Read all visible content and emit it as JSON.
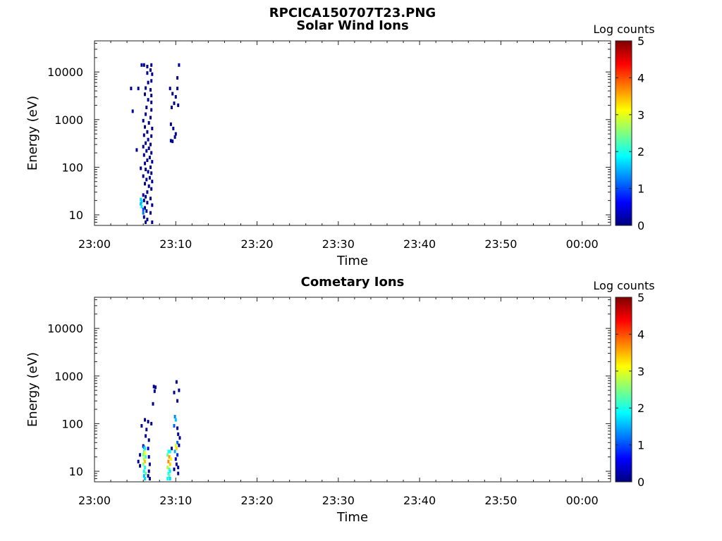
{
  "figure": {
    "title": "RPCICA150707T23.PNG"
  },
  "colormap": [
    "#00007f",
    "#0000ff",
    "#007fff",
    "#00ffff",
    "#7fff7f",
    "#ffff00",
    "#ff7f00",
    "#ff0000",
    "#7f0000"
  ],
  "chart_data": [
    {
      "type": "heatmap",
      "title": "Solar Wind Ions",
      "xlabel": "Time",
      "ylabel": "Energy (eV)",
      "yscale": "log",
      "xlim": [
        0,
        63.5
      ],
      "ylim": [
        6,
        45000
      ],
      "x_ticks": [
        0,
        10,
        20,
        30,
        40,
        50,
        60
      ],
      "x_tick_labels": [
        "23:00",
        "23:10",
        "23:20",
        "23:30",
        "23:40",
        "23:50",
        "00:00"
      ],
      "y_ticks": [
        10,
        100,
        1000,
        10000
      ],
      "y_tick_labels": [
        "10",
        "100",
        "1000",
        "10000"
      ],
      "colorbar": {
        "label": "Log counts",
        "range": [
          0,
          5
        ],
        "ticks": [
          0,
          1,
          2,
          3,
          4,
          5
        ],
        "tick_labels": [
          "0",
          "1",
          "2",
          "3",
          "4",
          "5"
        ]
      },
      "points": [
        [
          5.8,
          14000,
          0.1
        ],
        [
          6.1,
          14000,
          0.1
        ],
        [
          6.5,
          13000,
          0.1
        ],
        [
          7.0,
          14000,
          0.1
        ],
        [
          10.4,
          14000,
          0.1
        ],
        [
          6.9,
          11000,
          0.1
        ],
        [
          6.5,
          9500,
          0.1
        ],
        [
          7.1,
          9000,
          0.1
        ],
        [
          10.2,
          7500,
          0.1
        ],
        [
          7.0,
          6500,
          0.1
        ],
        [
          6.6,
          6000,
          0.1
        ],
        [
          4.5,
          4500,
          0.1
        ],
        [
          5.4,
          4500,
          0.1
        ],
        [
          6.3,
          4600,
          0.1
        ],
        [
          6.9,
          4200,
          0.1
        ],
        [
          9.3,
          4500,
          0.1
        ],
        [
          10.2,
          4500,
          0.1
        ],
        [
          6.2,
          3400,
          0.1
        ],
        [
          7.0,
          3200,
          0.1
        ],
        [
          9.6,
          3500,
          0.1
        ],
        [
          10.0,
          3000,
          0.1
        ],
        [
          6.6,
          2600,
          0.1
        ],
        [
          7.0,
          2300,
          0.1
        ],
        [
          9.8,
          2200,
          0.1
        ],
        [
          10.3,
          2000,
          0.1
        ],
        [
          9.5,
          1800,
          0.1
        ],
        [
          6.4,
          1800,
          0.1
        ],
        [
          7.0,
          1600,
          0.1
        ],
        [
          4.7,
          1500,
          0.1
        ],
        [
          6.3,
          1300,
          0.1
        ],
        [
          6.9,
          1100,
          0.1
        ],
        [
          6.0,
          950,
          0.1
        ],
        [
          6.7,
          850,
          0.1
        ],
        [
          9.4,
          800,
          0.1
        ],
        [
          6.2,
          700,
          0.1
        ],
        [
          7.1,
          650,
          0.1
        ],
        [
          9.7,
          650,
          0.1
        ],
        [
          6.5,
          550,
          0.1
        ],
        [
          10.0,
          500,
          0.1
        ],
        [
          6.1,
          470,
          0.1
        ],
        [
          7.0,
          450,
          0.1
        ],
        [
          9.9,
          430,
          0.1
        ],
        [
          6.6,
          380,
          0.1
        ],
        [
          9.4,
          360,
          0.1
        ],
        [
          9.6,
          350,
          0.1
        ],
        [
          6.3,
          320,
          0.1
        ],
        [
          6.9,
          300,
          0.1
        ],
        [
          6.0,
          270,
          0.1
        ],
        [
          6.7,
          250,
          0.1
        ],
        [
          5.2,
          230,
          0.1
        ],
        [
          6.4,
          220,
          0.1
        ],
        [
          7.0,
          200,
          0.1
        ],
        [
          6.1,
          180,
          0.1
        ],
        [
          6.8,
          160,
          0.1
        ],
        [
          6.5,
          140,
          0.1
        ],
        [
          7.1,
          130,
          0.1
        ],
        [
          6.2,
          120,
          0.1
        ],
        [
          6.9,
          100,
          0.1
        ],
        [
          5.7,
          95,
          0.1
        ],
        [
          6.3,
          90,
          0.1
        ],
        [
          6.6,
          80,
          0.1
        ],
        [
          7.0,
          75,
          0.1
        ],
        [
          6.0,
          65,
          0.1
        ],
        [
          6.8,
          60,
          0.1
        ],
        [
          6.4,
          55,
          0.1
        ],
        [
          7.1,
          50,
          0.1
        ],
        [
          6.2,
          45,
          0.1
        ],
        [
          6.7,
          40,
          0.1
        ],
        [
          7.0,
          35,
          0.1
        ],
        [
          6.5,
          30,
          0.1
        ],
        [
          6.0,
          26,
          0.1
        ],
        [
          6.3,
          24,
          0.1
        ],
        [
          6.9,
          22,
          0.1
        ],
        [
          6.1,
          20,
          0.1
        ],
        [
          6.5,
          18,
          0.1
        ],
        [
          7.1,
          16,
          0.1
        ],
        [
          6.2,
          14,
          0.1
        ],
        [
          6.4,
          12,
          0.1
        ],
        [
          6.9,
          11,
          0.1
        ],
        [
          6.1,
          9,
          0.1
        ],
        [
          6.5,
          8,
          0.1
        ],
        [
          6.3,
          7,
          0.1
        ],
        [
          7.1,
          7,
          0.1
        ],
        [
          5.7,
          21,
          1.7
        ],
        [
          5.8,
          19,
          1.7
        ],
        [
          5.7,
          17,
          1.5
        ],
        [
          5.8,
          15,
          1.8
        ],
        [
          6.0,
          13,
          1.0
        ],
        [
          6.0,
          11,
          1.2
        ]
      ]
    },
    {
      "type": "heatmap",
      "title": "Cometary Ions",
      "xlabel": "Time",
      "ylabel": "Energy (eV)",
      "yscale": "log",
      "xlim": [
        0,
        63.5
      ],
      "ylim": [
        6,
        45000
      ],
      "x_ticks": [
        0,
        10,
        20,
        30,
        40,
        50,
        60
      ],
      "x_tick_labels": [
        "23:00",
        "23:10",
        "23:20",
        "23:30",
        "23:40",
        "23:50",
        "00:00"
      ],
      "y_ticks": [
        10,
        100,
        1000,
        10000
      ],
      "y_tick_labels": [
        "10",
        "100",
        "1000",
        "10000"
      ],
      "colorbar": {
        "label": "Log counts",
        "range": [
          0,
          5
        ],
        "ticks": [
          0,
          1,
          2,
          3,
          4,
          5
        ],
        "tick_labels": [
          "0",
          "1",
          "2",
          "3",
          "4",
          "5"
        ]
      },
      "points": [
        [
          10.1,
          750,
          0.1
        ],
        [
          7.3,
          600,
          0.1
        ],
        [
          7.5,
          580,
          0.1
        ],
        [
          10.4,
          500,
          0.1
        ],
        [
          7.4,
          480,
          0.1
        ],
        [
          9.8,
          450,
          0.1
        ],
        [
          10.2,
          300,
          0.1
        ],
        [
          7.2,
          260,
          0.1
        ],
        [
          6.2,
          120,
          0.1
        ],
        [
          6.6,
          110,
          0.1
        ],
        [
          7.0,
          100,
          0.1
        ],
        [
          5.8,
          90,
          0.1
        ],
        [
          6.4,
          75,
          0.1
        ],
        [
          9.9,
          140,
          1.3
        ],
        [
          10.0,
          120,
          1.6
        ],
        [
          9.8,
          90,
          1.1
        ],
        [
          10.2,
          80,
          0.1
        ],
        [
          10.3,
          60,
          0.1
        ],
        [
          6.3,
          55,
          0.1
        ],
        [
          6.7,
          45,
          0.1
        ],
        [
          10.5,
          50,
          0.1
        ],
        [
          10.2,
          40,
          1.1
        ],
        [
          10.4,
          35,
          0.1
        ],
        [
          6.0,
          34,
          0.1
        ],
        [
          9.5,
          30,
          0.1
        ],
        [
          6.1,
          32,
          1.3
        ],
        [
          6.2,
          30,
          1.8
        ],
        [
          6.1,
          26,
          2.3
        ],
        [
          6.2,
          24,
          3.1
        ],
        [
          6.0,
          22,
          2.5
        ],
        [
          6.3,
          20,
          2.2
        ],
        [
          6.1,
          18,
          2.7
        ],
        [
          6.2,
          16,
          3.4
        ],
        [
          6.0,
          14,
          2.6
        ],
        [
          6.2,
          12,
          2.0
        ],
        [
          6.1,
          10,
          1.9
        ],
        [
          6.3,
          9,
          2.4
        ],
        [
          6.1,
          8,
          1.6
        ],
        [
          6.2,
          7,
          1.7
        ],
        [
          5.6,
          22,
          0.1
        ],
        [
          5.4,
          16,
          0.1
        ],
        [
          5.6,
          13,
          0.1
        ],
        [
          6.6,
          30,
          0.5
        ],
        [
          6.7,
          20,
          0.3
        ],
        [
          6.8,
          14,
          0.1
        ],
        [
          6.7,
          10,
          0.1
        ],
        [
          6.6,
          8,
          0.1
        ],
        [
          6.8,
          7,
          0.1
        ],
        [
          9.1,
          26,
          2.0
        ],
        [
          9.3,
          26,
          1.9
        ],
        [
          9.0,
          22,
          2.4
        ],
        [
          9.2,
          20,
          3.6
        ],
        [
          9.4,
          18,
          3.2
        ],
        [
          9.1,
          16,
          3.7
        ],
        [
          9.3,
          14,
          3.4
        ],
        [
          9.0,
          12,
          2.8
        ],
        [
          9.2,
          11,
          2.2
        ],
        [
          9.3,
          10,
          1.8
        ],
        [
          9.1,
          9,
          2.0
        ],
        [
          9.2,
          8,
          2.3
        ],
        [
          9.0,
          7,
          1.9
        ],
        [
          9.3,
          7,
          1.7
        ],
        [
          10.0,
          35,
          2.9
        ],
        [
          10.1,
          30,
          3.3
        ],
        [
          9.9,
          26,
          1.5
        ],
        [
          10.2,
          22,
          0.8
        ],
        [
          10.0,
          18,
          0.3
        ],
        [
          10.1,
          14,
          0.1
        ],
        [
          10.3,
          12,
          0.1
        ],
        [
          9.8,
          11,
          0.1
        ],
        [
          10.3,
          9,
          0.1
        ]
      ]
    }
  ]
}
